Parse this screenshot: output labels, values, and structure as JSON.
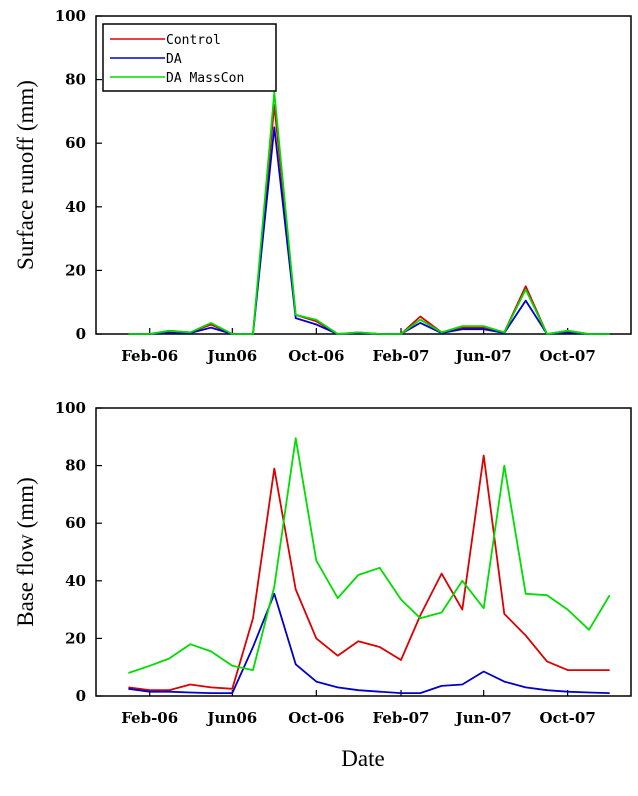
{
  "colors": {
    "Control": "#dd0000",
    "DA": "#0000cc",
    "DA MassCon": "#00dd00"
  },
  "chart_data": [
    {
      "type": "line",
      "ylabel": "Surface runoff (mm)",
      "xlabel": "",
      "ylim": [
        0,
        100
      ],
      "yticks": [
        0,
        20,
        40,
        60,
        80,
        100
      ],
      "x_domain": [
        "2005-11-15",
        "2008-01-01"
      ],
      "xtick_dates": [
        "2006-02-01",
        "2006-06-01",
        "2006-10-01",
        "2007-02-01",
        "2007-06-01",
        "2007-10-01"
      ],
      "xtick_labels": [
        "Feb-06",
        "Jun06",
        "Oct-06",
        "Feb-07",
        "Jun-07",
        "Oct-07"
      ],
      "legend": {
        "position": "top-left",
        "entries": [
          "Control",
          "DA",
          "DA MassCon"
        ]
      },
      "x": [
        "2006-01-01",
        "2006-02-01",
        "2006-03-01",
        "2006-04-01",
        "2006-05-01",
        "2006-06-01",
        "2006-07-01",
        "2006-08-01",
        "2006-09-01",
        "2006-10-01",
        "2006-11-01",
        "2006-12-01",
        "2007-01-01",
        "2007-02-01",
        "2007-03-01",
        "2007-04-01",
        "2007-05-01",
        "2007-06-01",
        "2007-07-01",
        "2007-08-01",
        "2007-09-01",
        "2007-10-01",
        "2007-11-01",
        "2007-12-01"
      ],
      "series": [
        {
          "name": "Control",
          "values": [
            0,
            0,
            1,
            0.5,
            3,
            0,
            0,
            72,
            6,
            4,
            0,
            0.5,
            0,
            0,
            5.5,
            0.5,
            2,
            2,
            0.5,
            15,
            0,
            1,
            0,
            0
          ]
        },
        {
          "name": "DA",
          "values": [
            0,
            0,
            0.5,
            0.3,
            2,
            0,
            0,
            65,
            5,
            3,
            0,
            0.3,
            0,
            0,
            3.5,
            0.3,
            1.5,
            1.5,
            0.3,
            10.5,
            0,
            0.5,
            0,
            0
          ]
        },
        {
          "name": "DA MassCon",
          "values": [
            0,
            0,
            1,
            0.5,
            3.5,
            0,
            0,
            76,
            6,
            4.5,
            0,
            0.5,
            0,
            0,
            4.5,
            0.5,
            2.5,
            2.5,
            0.5,
            14,
            0,
            1,
            0,
            0
          ]
        }
      ]
    },
    {
      "type": "line",
      "ylabel": "Base flow (mm)",
      "xlabel": "Date",
      "ylim": [
        0,
        100
      ],
      "yticks": [
        0,
        20,
        40,
        60,
        80,
        100
      ],
      "x_domain": [
        "2005-11-15",
        "2008-01-01"
      ],
      "xtick_dates": [
        "2006-02-01",
        "2006-06-01",
        "2006-10-01",
        "2007-02-01",
        "2007-06-01",
        "2007-10-01"
      ],
      "xtick_labels": [
        "Feb-06",
        "Jun06",
        "Oct-06",
        "Feb-07",
        "Jun-07",
        "Oct-07"
      ],
      "x": [
        "2006-01-01",
        "2006-02-01",
        "2006-03-01",
        "2006-04-01",
        "2006-05-01",
        "2006-06-01",
        "2006-07-01",
        "2006-08-01",
        "2006-09-01",
        "2006-10-01",
        "2006-11-01",
        "2006-12-01",
        "2007-01-01",
        "2007-02-01",
        "2007-03-01",
        "2007-04-01",
        "2007-05-01",
        "2007-06-01",
        "2007-07-01",
        "2007-08-01",
        "2007-09-01",
        "2007-10-01",
        "2007-11-01",
        "2007-12-01"
      ],
      "series": [
        {
          "name": "Control",
          "values": [
            3,
            2,
            2,
            4,
            3,
            2.5,
            27,
            79,
            37,
            20,
            14,
            19,
            17,
            12.5,
            28,
            42.5,
            30,
            83.5,
            28.5,
            21,
            12,
            9,
            9,
            9
          ]
        },
        {
          "name": "DA",
          "values": [
            2.5,
            1.5,
            1.5,
            1.2,
            1,
            1,
            17,
            35.5,
            11,
            5,
            3,
            2,
            1.5,
            1,
            1,
            3.5,
            4,
            8.5,
            5,
            3,
            2,
            1.5,
            1.2,
            1
          ]
        },
        {
          "name": "DA MassCon",
          "values": [
            8,
            10.5,
            13,
            18,
            15.5,
            10.5,
            9,
            38,
            89.5,
            47,
            34,
            42,
            44.5,
            33.5,
            27,
            29,
            40,
            30.5,
            80,
            35.5,
            35,
            30,
            23,
            35
          ]
        }
      ]
    }
  ]
}
